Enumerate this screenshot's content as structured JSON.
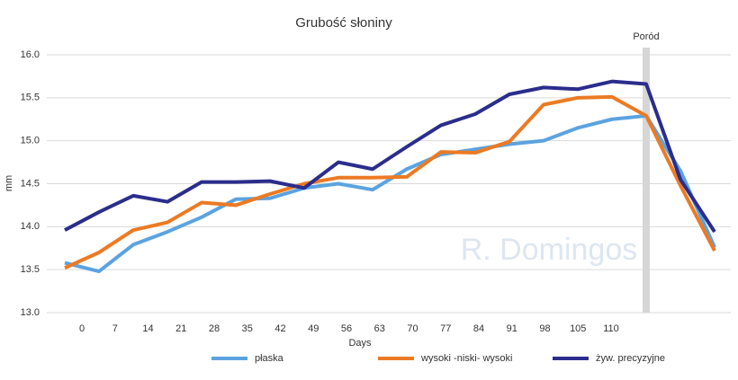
{
  "chart_data": {
    "type": "line",
    "title": "Grubość słoniny",
    "xlabel": "Days",
    "ylabel": "mm",
    "watermark": "R. Domingos",
    "categories": [
      null,
      "0",
      "7",
      "14",
      "21",
      "28",
      "35",
      "42",
      "49",
      "56",
      "63",
      "70",
      "77",
      "84",
      "91",
      "98",
      "105",
      "110",
      null,
      null
    ],
    "annotations": [
      {
        "text": "Poród",
        "at": 17
      }
    ],
    "series": [
      {
        "name": "płaska",
        "color": "#5ba3e0",
        "values": [
          13.58,
          13.48,
          13.79,
          13.94,
          14.11,
          14.32,
          14.33,
          14.45,
          14.5,
          14.43,
          14.67,
          14.84,
          14.9,
          14.96,
          15.0,
          15.15,
          15.25,
          15.29,
          14.65,
          13.76
        ]
      },
      {
        "name": "wysoki -niski- wysoki",
        "color": "#ec7a23",
        "values": [
          13.52,
          13.7,
          13.96,
          14.05,
          14.28,
          14.25,
          14.38,
          14.5,
          14.57,
          14.57,
          14.58,
          14.87,
          14.86,
          14.99,
          15.42,
          15.5,
          15.51,
          15.29,
          14.48,
          13.72
        ]
      },
      {
        "name": "żyw. precyzyjne",
        "color": "#2b2d8c",
        "values": [
          13.96,
          14.17,
          14.36,
          14.29,
          14.52,
          14.52,
          14.53,
          14.45,
          14.75,
          14.67,
          14.93,
          15.18,
          15.31,
          15.54,
          15.62,
          15.6,
          15.69,
          15.66,
          14.55,
          13.94
        ]
      }
    ],
    "ylim": [
      13.0,
      16.0
    ],
    "yticks": [
      {
        "value": 13,
        "label": "13.0"
      },
      13.5,
      {
        "value": 14,
        "label": "14.0"
      },
      14.5,
      {
        "value": 15,
        "label": "15.0"
      },
      15.5,
      {
        "value": 16,
        "label": "16.0"
      }
    ],
    "grid": true
  }
}
